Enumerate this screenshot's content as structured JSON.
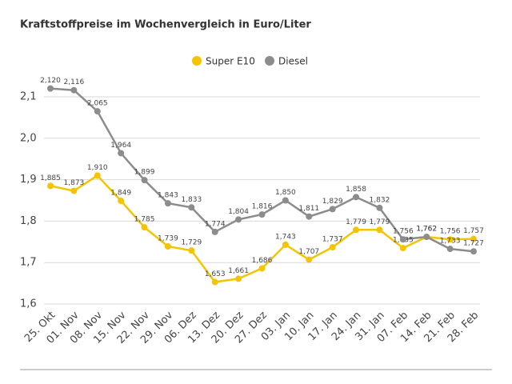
{
  "chart_data": {
    "type": "line",
    "title": "Kraftstoffpreise im Wochenvergleich in Euro/Liter",
    "categories": [
      "25. Okt",
      "01. Nov",
      "08. Nov",
      "15. Nov",
      "22. Nov",
      "29. Nov",
      "06. Dez",
      "13. Dez",
      "20. Dez",
      "27. Dez",
      "03. Jan",
      "10. Jan",
      "17. Jan",
      "24. Jan",
      "31. Jan",
      "07. Feb",
      "14. Feb",
      "21. Feb",
      "28. Feb"
    ],
    "series": [
      {
        "name": "Super E10",
        "color": "#f5c400",
        "values": [
          1.885,
          1.873,
          1.91,
          1.849,
          1.785,
          1.739,
          1.729,
          1.653,
          1.661,
          1.686,
          1.743,
          1.707,
          1.737,
          1.779,
          1.779,
          1.735,
          1.762,
          1.756,
          1.757
        ],
        "value_labels": [
          "1,885",
          "1,873",
          "1,910",
          "1,849",
          "1,785",
          "1,739",
          "1,729",
          "1,653",
          "1,661",
          "1,686",
          "1,743",
          "1,707",
          "1,737",
          "1,779",
          "1,779",
          "1,735",
          "1,762",
          "1,756",
          "1,757"
        ]
      },
      {
        "name": "Diesel",
        "color": "#8c8c8c",
        "values": [
          2.12,
          2.116,
          2.065,
          1.964,
          1.899,
          1.843,
          1.833,
          1.774,
          1.804,
          1.816,
          1.85,
          1.811,
          1.829,
          1.858,
          1.832,
          1.756,
          1.762,
          1.733,
          1.727
        ],
        "value_labels": [
          "2,120",
          "2,116",
          "2,065",
          "1,964",
          "1,899",
          "1,843",
          "1,833",
          "1,774",
          "1,804",
          "1,816",
          "1,850",
          "1,811",
          "1,829",
          "1,858",
          "1,832",
          "1,756",
          "1,762",
          "1,733",
          "1,727"
        ]
      }
    ],
    "ylim": [
      1.6,
      2.1
    ],
    "yticks": [
      {
        "value": 1.6,
        "label": "1,6"
      },
      {
        "value": 1.7,
        "label": "1,7"
      },
      {
        "value": 1.8,
        "label": "1,8"
      },
      {
        "value": 1.9,
        "label": "1,9"
      },
      {
        "value": 2.0,
        "label": "2,0"
      },
      {
        "value": 2.1,
        "label": "2,1"
      }
    ],
    "grid": true,
    "legend": "top"
  }
}
